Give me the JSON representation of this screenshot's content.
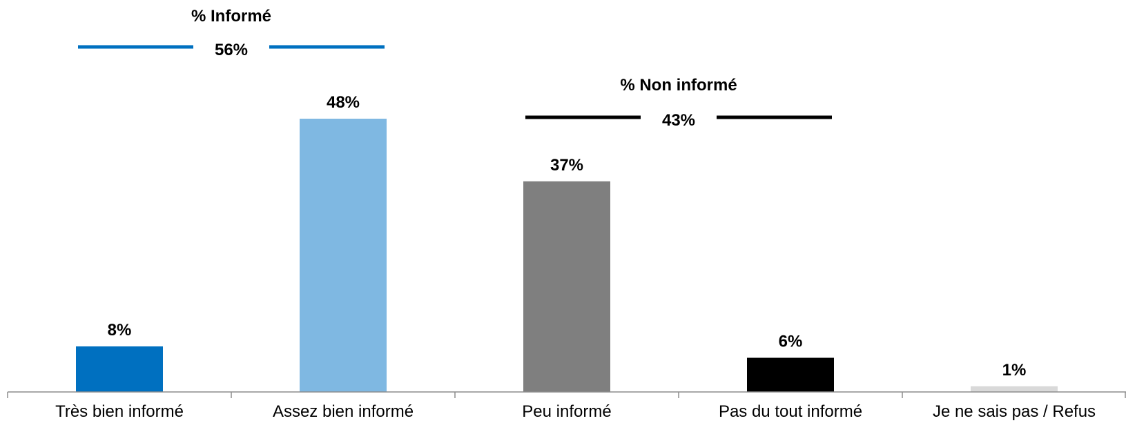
{
  "chart_data": {
    "type": "bar",
    "categories": [
      "Très bien informé",
      "Assez bien informé",
      "Peu informé",
      "Pas du tout informé",
      "Je ne sais pas / Refus"
    ],
    "values": [
      8,
      48,
      37,
      6,
      1
    ],
    "value_labels": [
      "8%",
      "48%",
      "37%",
      "6%",
      "1%"
    ],
    "colors": [
      "#0070C0",
      "#7FB8E2",
      "#7F7F7F",
      "#000000",
      "#D9D9D9"
    ],
    "ylim": [
      0,
      48
    ],
    "grid": false,
    "legend": "none",
    "groups": [
      {
        "label": "% Informé",
        "value_label": "56%",
        "value": 56,
        "categories": [
          0,
          1
        ],
        "color": "#0070C0"
      },
      {
        "label": "% Non informé",
        "value_label": "43%",
        "value": 43,
        "categories": [
          2,
          3
        ],
        "color": "#000000"
      }
    ]
  }
}
